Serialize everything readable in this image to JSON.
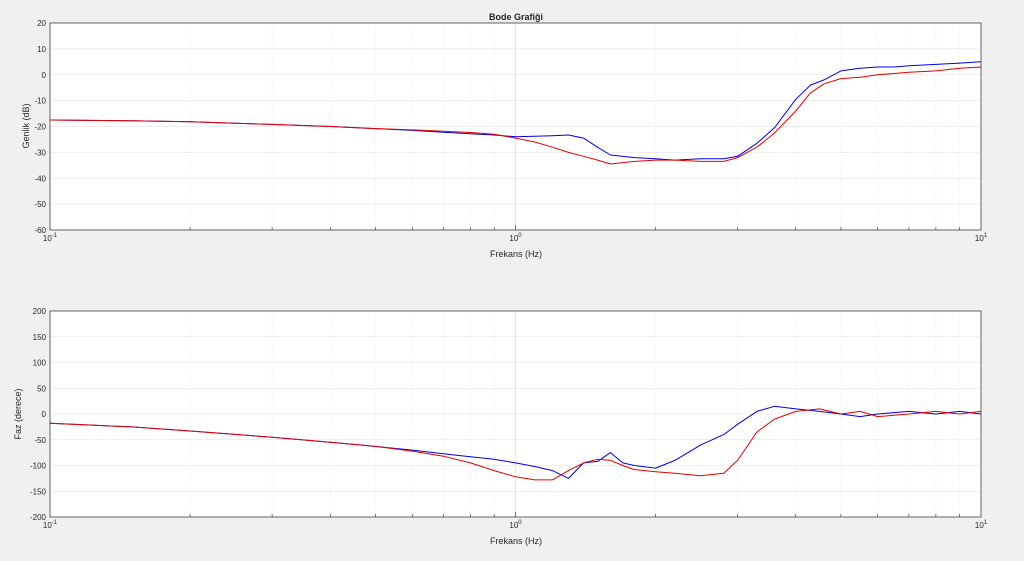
{
  "figure_title": "Bode Grafiği",
  "colors": {
    "series_blue": "#0000e6",
    "series_red": "#e60000",
    "axes_bg": "#ffffff",
    "grid": "#dcdcdc",
    "figure_bg": "#f0f0f0"
  },
  "chart_data": [
    {
      "type": "line",
      "title": "Bode Grafiği",
      "xlabel": "Frekans (Hz)",
      "ylabel": "Genlik (dB)",
      "xscale": "log",
      "xlim": [
        0.1,
        10
      ],
      "ylim": [
        -60,
        20
      ],
      "yticks": [
        -60,
        -50,
        -40,
        -30,
        -20,
        -10,
        0,
        10,
        20
      ],
      "xticks": [
        {
          "base": "10",
          "exp": "-1"
        },
        {
          "base": "10",
          "exp": "0"
        },
        {
          "base": "10",
          "exp": "1"
        }
      ],
      "grid": true,
      "series": [
        {
          "color": "#0000e6",
          "x": [
            0.1,
            0.15,
            0.2,
            0.3,
            0.4,
            0.5,
            0.6,
            0.7,
            0.8,
            0.9,
            1.0,
            1.1,
            1.2,
            1.3,
            1.4,
            1.5,
            1.6,
            1.8,
            2.0,
            2.2,
            2.5,
            2.8,
            3.0,
            3.3,
            3.6,
            4.0,
            4.3,
            4.6,
            5.0,
            5.5,
            6.0,
            6.5,
            7.0,
            8.0,
            9.0,
            10.0
          ],
          "y": [
            -17.5,
            -17.8,
            -18.2,
            -19.2,
            -20.0,
            -20.8,
            -21.5,
            -22.2,
            -22.8,
            -23.3,
            -24.0,
            -23.8,
            -23.6,
            -23.3,
            -24.5,
            -28.0,
            -31.0,
            -32.0,
            -32.5,
            -33.0,
            -32.5,
            -32.5,
            -31.5,
            -26.5,
            -20.5,
            -9.5,
            -4.0,
            -2.0,
            1.5,
            2.5,
            3.0,
            3.0,
            3.5,
            4.0,
            4.5,
            5.0
          ]
        },
        {
          "color": "#e60000",
          "x": [
            0.1,
            0.15,
            0.2,
            0.3,
            0.4,
            0.5,
            0.6,
            0.7,
            0.8,
            0.9,
            1.0,
            1.1,
            1.2,
            1.3,
            1.4,
            1.5,
            1.6,
            1.8,
            2.0,
            2.2,
            2.5,
            2.8,
            3.0,
            3.3,
            3.6,
            4.0,
            4.3,
            4.6,
            5.0,
            5.5,
            6.0,
            6.5,
            7.0,
            8.0,
            9.0,
            10.0
          ],
          "y": [
            -17.5,
            -17.8,
            -18.2,
            -19.2,
            -20.0,
            -20.8,
            -21.3,
            -21.8,
            -22.3,
            -23.0,
            -24.5,
            -26.0,
            -28.0,
            -30.0,
            -31.5,
            -33.0,
            -34.5,
            -33.5,
            -33.0,
            -33.0,
            -33.5,
            -33.5,
            -32.0,
            -28.0,
            -22.5,
            -14.0,
            -7.0,
            -3.5,
            -1.5,
            -1.0,
            0.0,
            0.5,
            1.0,
            1.5,
            2.5,
            3.0
          ]
        }
      ]
    },
    {
      "type": "line",
      "title": "",
      "xlabel": "Frekans (Hz)",
      "ylabel": "Faz (derece)",
      "xscale": "log",
      "xlim": [
        0.1,
        10
      ],
      "ylim": [
        -200,
        200
      ],
      "yticks": [
        -200,
        -150,
        -100,
        -50,
        0,
        50,
        100,
        150,
        200
      ],
      "xticks": [
        {
          "base": "10",
          "exp": "-1"
        },
        {
          "base": "10",
          "exp": "0"
        },
        {
          "base": "10",
          "exp": "1"
        }
      ],
      "grid": true,
      "series": [
        {
          "color": "#0000e6",
          "x": [
            0.1,
            0.15,
            0.2,
            0.3,
            0.4,
            0.5,
            0.6,
            0.7,
            0.8,
            0.9,
            1.0,
            1.1,
            1.2,
            1.3,
            1.4,
            1.5,
            1.6,
            1.7,
            1.8,
            2.0,
            2.2,
            2.5,
            2.8,
            3.0,
            3.3,
            3.6,
            4.0,
            4.5,
            5.0,
            5.5,
            6.0,
            7.0,
            8.0,
            9.0,
            10.0
          ],
          "y": [
            -18,
            -25,
            -33,
            -45,
            -55,
            -63,
            -70,
            -77,
            -83,
            -88,
            -95,
            -102,
            -110,
            -125,
            -95,
            -92,
            -75,
            -95,
            -100,
            -105,
            -90,
            -60,
            -40,
            -20,
            5,
            15,
            10,
            5,
            0,
            -5,
            0,
            5,
            0,
            5,
            0
          ]
        },
        {
          "color": "#e60000",
          "x": [
            0.1,
            0.15,
            0.2,
            0.3,
            0.4,
            0.5,
            0.6,
            0.7,
            0.8,
            0.9,
            1.0,
            1.1,
            1.2,
            1.3,
            1.4,
            1.5,
            1.6,
            1.7,
            1.8,
            2.0,
            2.2,
            2.5,
            2.8,
            3.0,
            3.3,
            3.6,
            4.0,
            4.5,
            5.0,
            5.5,
            6.0,
            7.0,
            8.0,
            9.0,
            10.0
          ],
          "y": [
            -18,
            -25,
            -33,
            -45,
            -55,
            -63,
            -72,
            -82,
            -95,
            -110,
            -122,
            -128,
            -128,
            -110,
            -95,
            -88,
            -90,
            -100,
            -108,
            -112,
            -115,
            -120,
            -115,
            -90,
            -35,
            -10,
            5,
            10,
            0,
            5,
            -5,
            0,
            5,
            0,
            5
          ]
        }
      ]
    }
  ]
}
